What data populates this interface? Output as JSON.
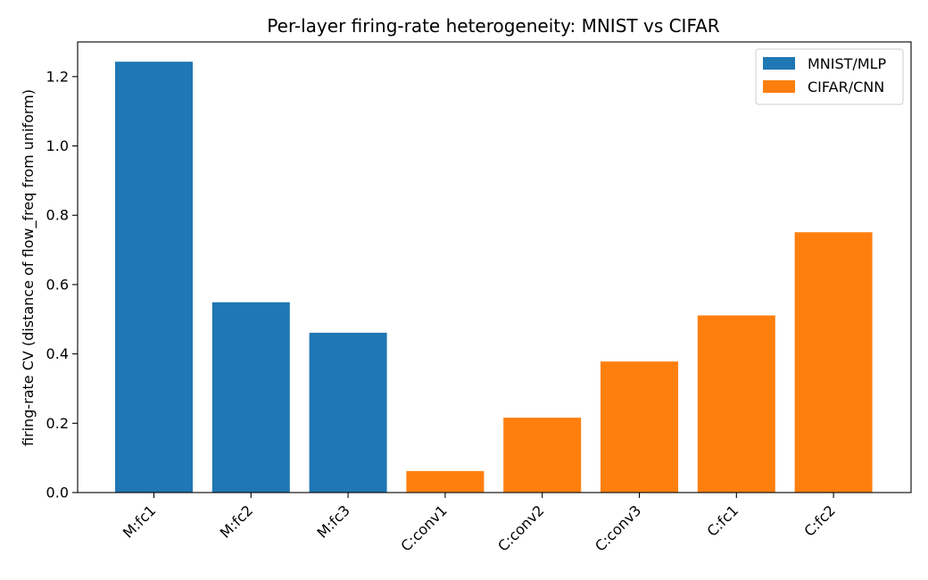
{
  "chart_data": {
    "type": "bar",
    "title": "Per-layer firing-rate heterogeneity: MNIST vs CIFAR",
    "xlabel": "",
    "ylabel": "firing-rate CV  (distance of flow_freq from uniform)",
    "categories": [
      "M:fc1",
      "M:fc2",
      "M:fc3",
      "C:conv1",
      "C:conv2",
      "C:conv3",
      "C:fc1",
      "C:fc2"
    ],
    "values": [
      1.243,
      0.549,
      0.461,
      0.062,
      0.216,
      0.378,
      0.511,
      0.751
    ],
    "bar_series": [
      "MNIST/MLP",
      "MNIST/MLP",
      "MNIST/MLP",
      "CIFAR/CNN",
      "CIFAR/CNN",
      "CIFAR/CNN",
      "CIFAR/CNN",
      "CIFAR/CNN"
    ],
    "series": [
      {
        "name": "MNIST/MLP",
        "color": "#1f77b4"
      },
      {
        "name": "CIFAR/CNN",
        "color": "#ff7f0e"
      }
    ],
    "ylim": [
      0,
      1.3
    ],
    "yticks": [
      0.0,
      0.2,
      0.4,
      0.6,
      0.8,
      1.0,
      1.2
    ],
    "ytick_labels": [
      "0.0",
      "0.2",
      "0.4",
      "0.6",
      "0.8",
      "1.0",
      "1.2"
    ],
    "grid": false,
    "legend_position": "top-right"
  }
}
